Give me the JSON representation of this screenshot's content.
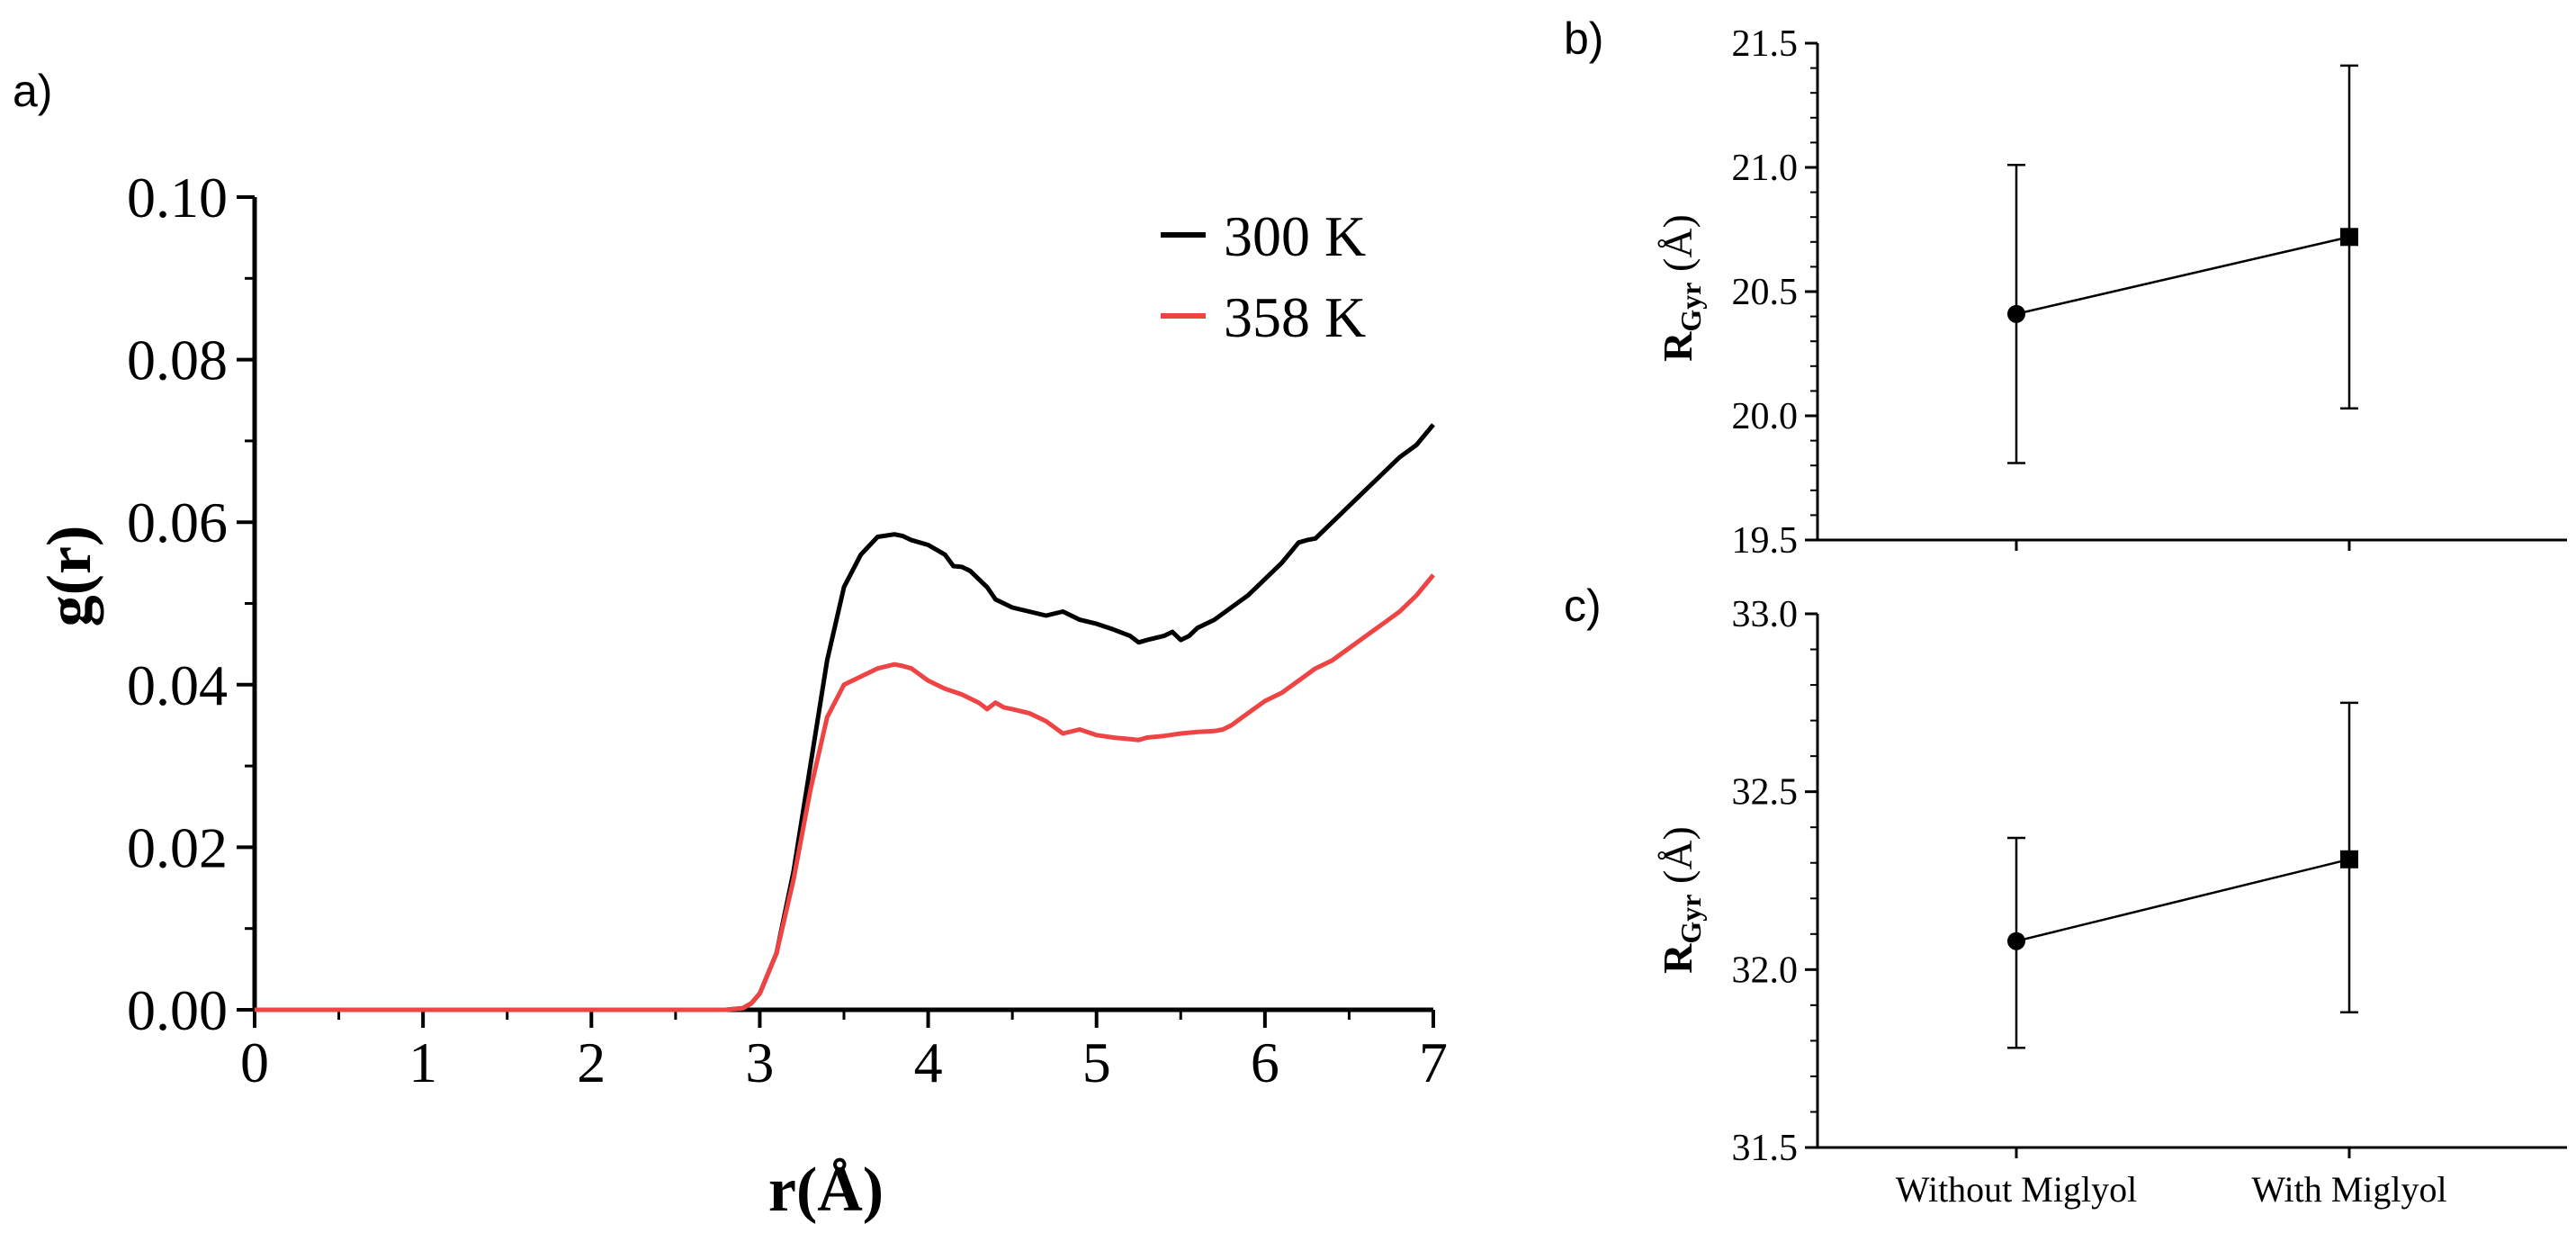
{
  "panel_labels": {
    "a": "a)",
    "b": "b)",
    "c": "c)"
  },
  "chart_data": [
    {
      "id": "a",
      "type": "line",
      "title": "",
      "xlabel": "r(Å)",
      "ylabel": "g(r)",
      "xlim": [
        0,
        7
      ],
      "ylim": [
        0,
        0.1
      ],
      "xticks": [
        "0",
        "1",
        "2",
        "3",
        "4",
        "5",
        "6",
        "7"
      ],
      "yticks": [
        "0.00",
        "0.02",
        "0.04",
        "0.06",
        "0.08",
        "0.10"
      ],
      "grid": false,
      "legend_position": "top-right",
      "series": [
        {
          "name": "300 K",
          "color": "#000000",
          "x": [
            0,
            2.8,
            2.9,
            2.95,
            3.0,
            3.1,
            3.2,
            3.3,
            3.4,
            3.5,
            3.6,
            3.7,
            3.8,
            3.85,
            3.9,
            4.0,
            4.1,
            4.15,
            4.2,
            4.25,
            4.3,
            4.35,
            4.4,
            4.5,
            4.6,
            4.7,
            4.8,
            4.85,
            4.9,
            5.0,
            5.1,
            5.2,
            5.25,
            5.3,
            5.4,
            5.45,
            5.5,
            5.55,
            5.6,
            5.7,
            5.8,
            5.9,
            6.0,
            6.1,
            6.2,
            6.25,
            6.3,
            6.4,
            6.45,
            6.5,
            6.6,
            6.7,
            6.8,
            6.9,
            7.0
          ],
          "y": [
            0,
            0,
            0.0002,
            0.0008,
            0.002,
            0.007,
            0.017,
            0.03,
            0.043,
            0.052,
            0.056,
            0.0582,
            0.0585,
            0.0583,
            0.0578,
            0.0572,
            0.056,
            0.0546,
            0.0545,
            0.054,
            0.053,
            0.052,
            0.0505,
            0.0495,
            0.049,
            0.0485,
            0.049,
            0.0485,
            0.048,
            0.0475,
            0.0468,
            0.046,
            0.0452,
            0.0455,
            0.046,
            0.0465,
            0.0455,
            0.046,
            0.047,
            0.048,
            0.0495,
            0.051,
            0.053,
            0.055,
            0.0575,
            0.0578,
            0.058,
            0.06,
            0.061,
            0.062,
            0.064,
            0.066,
            0.068,
            0.0695,
            0.072
          ]
        },
        {
          "name": "358 K",
          "color": "#ee4444",
          "x": [
            0,
            2.8,
            2.9,
            2.95,
            3.0,
            3.1,
            3.2,
            3.3,
            3.4,
            3.5,
            3.6,
            3.7,
            3.8,
            3.85,
            3.9,
            4.0,
            4.1,
            4.2,
            4.3,
            4.35,
            4.4,
            4.45,
            4.5,
            4.6,
            4.7,
            4.8,
            4.9,
            5.0,
            5.1,
            5.2,
            5.25,
            5.3,
            5.4,
            5.5,
            5.6,
            5.7,
            5.75,
            5.8,
            5.9,
            6.0,
            6.1,
            6.2,
            6.3,
            6.4,
            6.5,
            6.6,
            6.7,
            6.8,
            6.9,
            7.0
          ],
          "y": [
            0,
            0,
            0.0002,
            0.0008,
            0.002,
            0.007,
            0.016,
            0.027,
            0.036,
            0.04,
            0.041,
            0.042,
            0.0425,
            0.0423,
            0.042,
            0.0405,
            0.0395,
            0.0388,
            0.0378,
            0.037,
            0.0378,
            0.0372,
            0.037,
            0.0365,
            0.0355,
            0.034,
            0.0345,
            0.0338,
            0.0335,
            0.0333,
            0.0332,
            0.0335,
            0.0337,
            0.034,
            0.0342,
            0.0343,
            0.0345,
            0.035,
            0.0365,
            0.038,
            0.039,
            0.0405,
            0.042,
            0.043,
            0.0445,
            0.046,
            0.0475,
            0.049,
            0.051,
            0.0535
          ]
        }
      ]
    },
    {
      "id": "b",
      "type": "scatter",
      "title": "",
      "xlabel": "",
      "ylabel_main": "R",
      "ylabel_sub": "Gyr",
      "ylabel_unit": " (Å)",
      "ylim": [
        19.5,
        21.5
      ],
      "yticks": [
        "19.5",
        "20.0",
        "20.5",
        "21.0",
        "21.5"
      ],
      "categories": [
        "Without Miglyol",
        "With Miglyol"
      ],
      "show_category_labels": false,
      "values": [
        20.41,
        20.72
      ],
      "error_low": [
        19.81,
        20.03
      ],
      "error_high": [
        21.01,
        21.41
      ],
      "markers": [
        "circle",
        "square"
      ]
    },
    {
      "id": "c",
      "type": "scatter",
      "title": "",
      "xlabel": "",
      "ylabel_main": "R",
      "ylabel_sub": "Gyr",
      "ylabel_unit": " (Å)",
      "ylim": [
        31.5,
        33.0
      ],
      "yticks": [
        "31.5",
        "32.0",
        "32.5",
        "33.0"
      ],
      "categories": [
        "Without Miglyol",
        "With Miglyol"
      ],
      "show_category_labels": true,
      "values": [
        32.08,
        32.31
      ],
      "error_low": [
        31.78,
        31.88
      ],
      "error_high": [
        32.37,
        32.75
      ],
      "markers": [
        "circle",
        "square"
      ]
    }
  ]
}
